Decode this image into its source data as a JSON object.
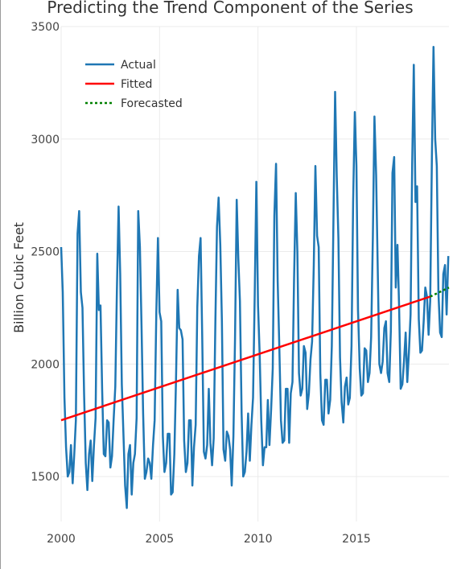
{
  "chart_data": {
    "type": "line",
    "title": "Predicting the Trend Component of the Series",
    "xlabel": "",
    "ylabel": "Billion Cubic Feet",
    "xlim": [
      2000,
      2019.7
    ],
    "ylim": [
      1300,
      3500
    ],
    "xticks": [
      2000,
      2005,
      2010,
      2015
    ],
    "yticks": [
      1500,
      2000,
      2500,
      3000,
      3500
    ],
    "grid": true,
    "legend_position": "top-left",
    "colors": {
      "Actual": "#1f77b4",
      "Fitted": "#ff0000",
      "Forecasted": "#008000"
    },
    "series": [
      {
        "name": "Actual",
        "style": "solid",
        "x_start": 2000.0,
        "x_step": 0.08333,
        "values": [
          2520,
          2320,
          1850,
          1630,
          1500,
          1520,
          1640,
          1470,
          1600,
          1750,
          2580,
          2680,
          2320,
          2250,
          1870,
          1560,
          1440,
          1600,
          1660,
          1480,
          1640,
          1760,
          2490,
          2240,
          2260,
          1880,
          1600,
          1590,
          1750,
          1740,
          1540,
          1590,
          1750,
          1900,
          2330,
          2700,
          2400,
          1910,
          1680,
          1460,
          1360,
          1600,
          1640,
          1420,
          1560,
          1600,
          1760,
          2680,
          2520,
          2170,
          1780,
          1490,
          1520,
          1580,
          1560,
          1490,
          1640,
          1750,
          2230,
          2560,
          2230,
          2190,
          1680,
          1520,
          1560,
          1690,
          1690,
          1420,
          1430,
          1600,
          1920,
          2330,
          2160,
          2150,
          2110,
          1660,
          1520,
          1560,
          1750,
          1750,
          1460,
          1630,
          1730,
          2250,
          2480,
          2560,
          2130,
          1610,
          1580,
          1640,
          1890,
          1650,
          1550,
          1670,
          2190,
          2610,
          2740,
          2530,
          2190,
          1620,
          1570,
          1700,
          1680,
          1620,
          1460,
          1680,
          2110,
          2730,
          2470,
          2280,
          1780,
          1500,
          1520,
          1610,
          1780,
          1570,
          1730,
          1850,
          2310,
          2810,
          2260,
          2050,
          1750,
          1550,
          1630,
          1630,
          1840,
          1640,
          1800,
          1980,
          2660,
          2890,
          2370,
          2070,
          1750,
          1650,
          1660,
          1890,
          1890,
          1650,
          1870,
          1920,
          2380,
          2760,
          2500,
          1960,
          1860,
          1890,
          2080,
          2050,
          1800,
          1870,
          2020,
          2100,
          2440,
          2880,
          2570,
          2520,
          1960,
          1750,
          1730,
          1930,
          1930,
          1780,
          1840,
          2080,
          2630,
          3210,
          2840,
          2560,
          2030,
          1830,
          1740,
          1900,
          1940,
          1820,
          1850,
          2080,
          2720,
          3120,
          2880,
          2240,
          1980,
          1860,
          1870,
          2070,
          2060,
          1920,
          1960,
          2120,
          2560,
          3100,
          2840,
          2420,
          2000,
          1960,
          2010,
          2160,
          2190,
          1960,
          1920,
          2150,
          2850,
          2920,
          2340,
          2530,
          2260,
          1890,
          1910,
          2010,
          2140,
          1920,
          2050,
          2220,
          2890,
          3330,
          2720,
          2790,
          2200,
          2050,
          2060,
          2190,
          2340,
          2300,
          2130,
          2280,
          2920,
          3410,
          3000,
          2880,
          2320,
          2140,
          2120,
          2400,
          2440,
          2220,
          2480
        ]
      },
      {
        "name": "Fitted",
        "style": "solid",
        "x": [
          2000,
          2018.75
        ],
        "values": [
          1750,
          2300
        ]
      },
      {
        "name": "Forecasted",
        "style": "dotted",
        "x": [
          2018.75,
          2019.7
        ],
        "values": [
          2300,
          2340
        ]
      }
    ]
  }
}
